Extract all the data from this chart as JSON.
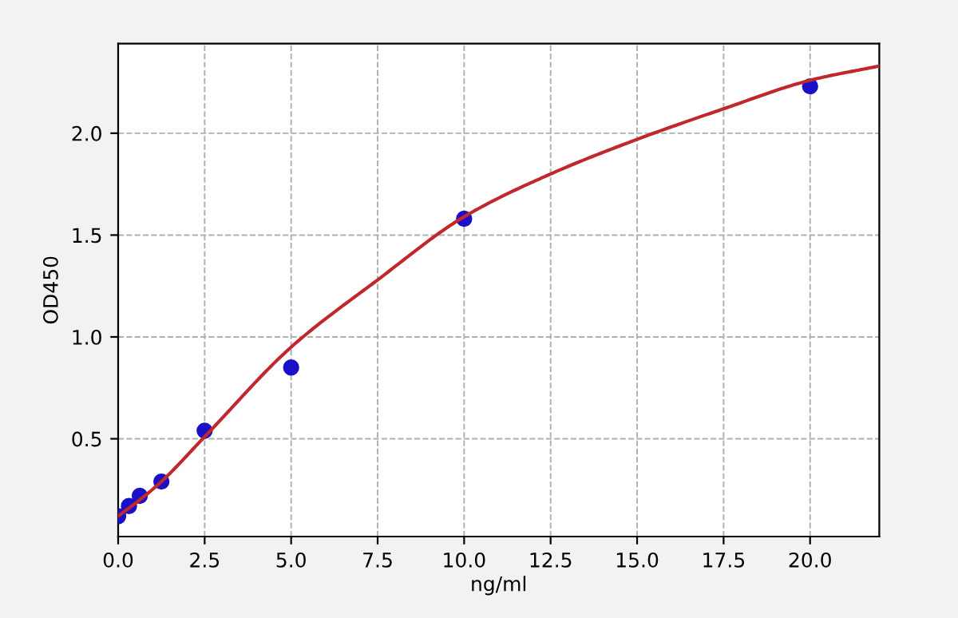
{
  "chart_data": {
    "type": "scatter",
    "xlabel": "ng/ml",
    "ylabel": "OD450",
    "xlim": [
      0,
      22
    ],
    "ylim": [
      0.02,
      2.44
    ],
    "xticks": [
      {
        "value": 0,
        "label": "0.0"
      },
      {
        "value": 2.5,
        "label": "2.5"
      },
      {
        "value": 5,
        "label": "5.0"
      },
      {
        "value": 7.5,
        "label": "7.5"
      },
      {
        "value": 10,
        "label": "10.0"
      },
      {
        "value": 12.5,
        "label": "12.5"
      },
      {
        "value": 15,
        "label": "15.0"
      },
      {
        "value": 17.5,
        "label": "17.5"
      },
      {
        "value": 20,
        "label": "20.0"
      }
    ],
    "yticks": [
      {
        "value": 0.5,
        "label": "0.5"
      },
      {
        "value": 1,
        "label": "1.0"
      },
      {
        "value": 1.5,
        "label": "1.5"
      },
      {
        "value": 2,
        "label": "2.0"
      }
    ],
    "grid": true,
    "series": [
      {
        "color": "#1a10c8",
        "marker": "circle",
        "x": [
          0,
          0.3125,
          0.625,
          1.25,
          2.5,
          5,
          10,
          20
        ],
        "values": [
          0.12,
          0.17,
          0.22,
          0.29,
          0.54,
          0.85,
          1.58,
          2.23
        ]
      },
      {
        "type": "line",
        "color": "#c0282d",
        "marker": "none",
        "line_style": "solid",
        "x": [
          0,
          0.625,
          1.25,
          2.5,
          5,
          7.5,
          10,
          12.5,
          15,
          17.5,
          20,
          22
        ],
        "values": [
          0.12,
          0.2,
          0.29,
          0.51,
          0.95,
          1.28,
          1.59,
          1.8,
          1.97,
          2.12,
          2.26,
          2.33
        ]
      }
    ]
  }
}
